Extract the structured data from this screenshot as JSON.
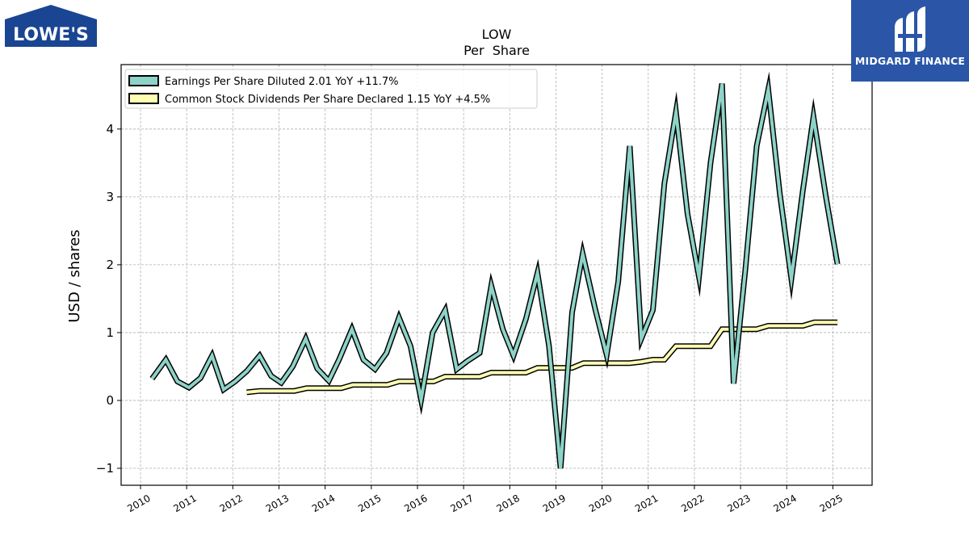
{
  "branding": {
    "company_logo_text": "LOWE'S",
    "publisher_name": "MIDGARD FINANCE",
    "publisher_color": "#2b56a7",
    "company_color": "#1a4592"
  },
  "chart_data": {
    "type": "line",
    "title": "LOW",
    "subtitle": "Per  Share",
    "ylabel": "USD / shares",
    "xlabel": "",
    "ylim": [
      -1.25,
      4.95
    ],
    "xlim": [
      2009.58,
      2025.85
    ],
    "yticks": [
      -1,
      0,
      1,
      2,
      3,
      4
    ],
    "ytick_labels": [
      "−1",
      "0",
      "1",
      "2",
      "3",
      "4"
    ],
    "xticks": [
      2010,
      2011,
      2012,
      2013,
      2014,
      2015,
      2016,
      2017,
      2018,
      2019,
      2020,
      2021,
      2022,
      2023,
      2024,
      2025
    ],
    "xtick_labels": [
      "2010",
      "2011",
      "2012",
      "2013",
      "2014",
      "2015",
      "2016",
      "2017",
      "2018",
      "2019",
      "2020",
      "2021",
      "2022",
      "2023",
      "2024",
      "2025"
    ],
    "grid": true,
    "legend_position": "top-left",
    "series": [
      {
        "name": "Earnings Per Share Diluted",
        "legend_label": "Earnings Per Share Diluted  2.01 YoY +11.7%",
        "color": "#8dd3c7",
        "points": [
          [
            2010.25,
            0.32
          ],
          [
            2010.55,
            0.6
          ],
          [
            2010.8,
            0.28
          ],
          [
            2011.05,
            0.19
          ],
          [
            2011.3,
            0.33
          ],
          [
            2011.55,
            0.66
          ],
          [
            2011.8,
            0.16
          ],
          [
            2012.05,
            0.28
          ],
          [
            2012.3,
            0.43
          ],
          [
            2012.58,
            0.66
          ],
          [
            2012.83,
            0.36
          ],
          [
            2013.05,
            0.26
          ],
          [
            2013.3,
            0.5
          ],
          [
            2013.58,
            0.91
          ],
          [
            2013.83,
            0.47
          ],
          [
            2014.08,
            0.29
          ],
          [
            2014.3,
            0.6
          ],
          [
            2014.58,
            1.05
          ],
          [
            2014.83,
            0.6
          ],
          [
            2015.08,
            0.46
          ],
          [
            2015.33,
            0.7
          ],
          [
            2015.6,
            1.22
          ],
          [
            2015.85,
            0.8
          ],
          [
            2016.08,
            0.01
          ],
          [
            2016.33,
            1.0
          ],
          [
            2016.6,
            1.33
          ],
          [
            2016.85,
            0.46
          ],
          [
            2017.08,
            0.58
          ],
          [
            2017.35,
            0.7
          ],
          [
            2017.6,
            1.69
          ],
          [
            2017.85,
            1.05
          ],
          [
            2018.08,
            0.66
          ],
          [
            2018.35,
            1.2
          ],
          [
            2018.6,
            1.88
          ],
          [
            2018.85,
            0.8
          ],
          [
            2019.1,
            -1.0
          ],
          [
            2019.35,
            1.3
          ],
          [
            2019.58,
            2.16
          ],
          [
            2019.85,
            1.35
          ],
          [
            2020.1,
            0.67
          ],
          [
            2020.35,
            1.75
          ],
          [
            2020.6,
            3.75
          ],
          [
            2020.85,
            0.91
          ],
          [
            2021.1,
            1.33
          ],
          [
            2021.35,
            3.2
          ],
          [
            2021.6,
            4.25
          ],
          [
            2021.85,
            2.75
          ],
          [
            2022.1,
            1.82
          ],
          [
            2022.35,
            3.5
          ],
          [
            2022.6,
            4.67
          ],
          [
            2022.85,
            0.25
          ],
          [
            2023.1,
            1.9
          ],
          [
            2023.35,
            3.75
          ],
          [
            2023.6,
            4.58
          ],
          [
            2023.85,
            3.05
          ],
          [
            2024.1,
            1.79
          ],
          [
            2024.35,
            3.1
          ],
          [
            2024.58,
            4.18
          ],
          [
            2024.85,
            3.0
          ],
          [
            2025.1,
            2.01
          ]
        ]
      },
      {
        "name": "Common Stock Dividends Per Share Declared",
        "legend_label": "Common Stock Dividends Per Share Declared  1.15 YoY +4.5%",
        "color": "#ffffb3",
        "points": [
          [
            2012.3,
            0.12
          ],
          [
            2012.58,
            0.14
          ],
          [
            2012.83,
            0.14
          ],
          [
            2013.08,
            0.14
          ],
          [
            2013.33,
            0.14
          ],
          [
            2013.6,
            0.18
          ],
          [
            2013.85,
            0.18
          ],
          [
            2014.1,
            0.18
          ],
          [
            2014.35,
            0.18
          ],
          [
            2014.6,
            0.23
          ],
          [
            2014.85,
            0.23
          ],
          [
            2015.1,
            0.23
          ],
          [
            2015.35,
            0.23
          ],
          [
            2015.6,
            0.28
          ],
          [
            2015.85,
            0.28
          ],
          [
            2016.1,
            0.28
          ],
          [
            2016.35,
            0.28
          ],
          [
            2016.6,
            0.35
          ],
          [
            2016.85,
            0.35
          ],
          [
            2017.1,
            0.35
          ],
          [
            2017.35,
            0.35
          ],
          [
            2017.6,
            0.41
          ],
          [
            2017.85,
            0.41
          ],
          [
            2018.1,
            0.41
          ],
          [
            2018.35,
            0.41
          ],
          [
            2018.6,
            0.48
          ],
          [
            2018.85,
            0.48
          ],
          [
            2019.1,
            0.48
          ],
          [
            2019.35,
            0.48
          ],
          [
            2019.6,
            0.55
          ],
          [
            2019.85,
            0.55
          ],
          [
            2020.1,
            0.55
          ],
          [
            2020.35,
            0.55
          ],
          [
            2020.6,
            0.55
          ],
          [
            2020.85,
            0.57
          ],
          [
            2021.1,
            0.6
          ],
          [
            2021.35,
            0.6
          ],
          [
            2021.6,
            0.8
          ],
          [
            2021.85,
            0.8
          ],
          [
            2022.1,
            0.8
          ],
          [
            2022.35,
            0.8
          ],
          [
            2022.6,
            1.05
          ],
          [
            2022.85,
            1.05
          ],
          [
            2023.1,
            1.05
          ],
          [
            2023.35,
            1.05
          ],
          [
            2023.6,
            1.1
          ],
          [
            2023.85,
            1.1
          ],
          [
            2024.1,
            1.1
          ],
          [
            2024.35,
            1.1
          ],
          [
            2024.6,
            1.15
          ],
          [
            2024.85,
            1.15
          ],
          [
            2025.1,
            1.15
          ]
        ]
      }
    ]
  }
}
